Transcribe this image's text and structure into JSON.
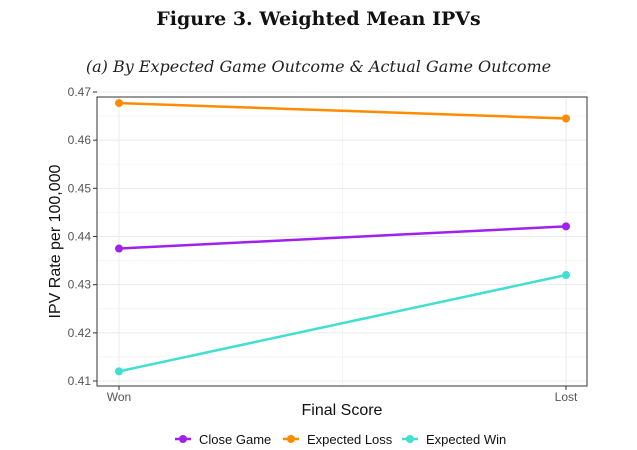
{
  "figure": {
    "title": "Figure 3.  Weighted Mean IPVs",
    "subtitle": "(a) By Expected Game Outcome & Actual Game Outcome"
  },
  "chart_data": {
    "type": "line",
    "categories": [
      "Won",
      "Lost"
    ],
    "series": [
      {
        "name": "Close Game",
        "color": "#a020f0",
        "values": [
          0.4375,
          0.4421
        ]
      },
      {
        "name": "Expected Loss",
        "color": "#ff8c00",
        "values": [
          0.4677,
          0.4645
        ]
      },
      {
        "name": "Expected Win",
        "color": "#40e0d0",
        "values": [
          0.412,
          0.432
        ]
      }
    ],
    "xlabel": "Final Score",
    "ylabel": "IPV Rate per 100,000",
    "ylim": [
      0.41,
      0.47
    ],
    "yticks": [
      "0.41",
      "0.42",
      "0.43",
      "0.44",
      "0.45",
      "0.46",
      "0.47"
    ],
    "grid": true,
    "legend_position": "bottom"
  }
}
